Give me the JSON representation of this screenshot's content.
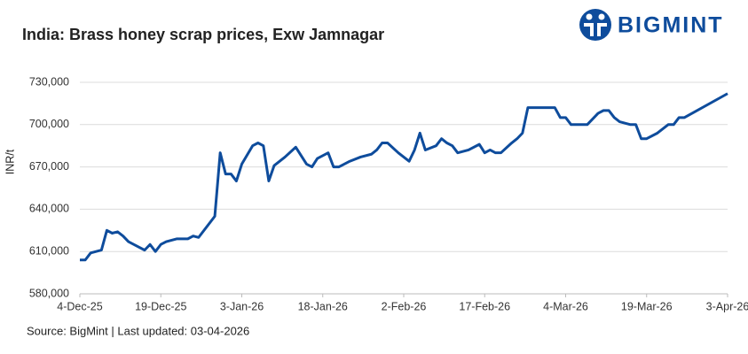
{
  "chart_data": {
    "type": "line",
    "title": "India: Brass honey scrap prices, Exw Jamnagar",
    "logo_text": "BIGMINT",
    "y_label": "INR/t",
    "source": "Source: BigMint | Last updated: 03-04-2026",
    "color": "#0e4c9c",
    "grid": true,
    "x": [
      "2025-12-04",
      "2025-12-05",
      "2025-12-06",
      "2025-12-08",
      "2025-12-09",
      "2025-12-10",
      "2025-12-11",
      "2025-12-12",
      "2025-12-13",
      "2025-12-15",
      "2025-12-16",
      "2025-12-17",
      "2025-12-18",
      "2025-12-19",
      "2025-12-20",
      "2025-12-22",
      "2025-12-24",
      "2025-12-25",
      "2025-12-26",
      "2025-12-29",
      "2025-12-30",
      "2025-12-31",
      "2026-01-01",
      "2026-01-02",
      "2026-01-03",
      "2026-01-05",
      "2026-01-06",
      "2026-01-07",
      "2026-01-08",
      "2026-01-09",
      "2026-01-11",
      "2026-01-13",
      "2026-01-15",
      "2026-01-16",
      "2026-01-17",
      "2026-01-19",
      "2026-01-20",
      "2026-01-21",
      "2026-01-23",
      "2026-01-25",
      "2026-01-27",
      "2026-01-28",
      "2026-01-29",
      "2026-01-30",
      "2026-02-01",
      "2026-02-02",
      "2026-02-03",
      "2026-02-04",
      "2026-02-05",
      "2026-02-06",
      "2026-02-08",
      "2026-02-09",
      "2026-02-10",
      "2026-02-11",
      "2026-02-12",
      "2026-02-14",
      "2026-02-16",
      "2026-02-17",
      "2026-02-18",
      "2026-02-19",
      "2026-02-20",
      "2026-02-22",
      "2026-02-23",
      "2026-02-24",
      "2026-02-25",
      "2026-02-27",
      "2026-03-02",
      "2026-03-03",
      "2026-03-04",
      "2026-03-05",
      "2026-03-08",
      "2026-03-10",
      "2026-03-11",
      "2026-03-12",
      "2026-03-13",
      "2026-03-14",
      "2026-03-16",
      "2026-03-17",
      "2026-03-18",
      "2026-03-19",
      "2026-03-21",
      "2026-03-23",
      "2026-03-24",
      "2026-03-25",
      "2026-03-26",
      "2026-04-03"
    ],
    "values": [
      604000,
      604000,
      609000,
      611000,
      625000,
      623000,
      624000,
      621000,
      617000,
      613000,
      611000,
      615000,
      610000,
      615000,
      617000,
      619000,
      619000,
      621000,
      620000,
      635000,
      680000,
      665000,
      665000,
      660000,
      672000,
      685000,
      687000,
      685000,
      660000,
      671000,
      677000,
      684000,
      672000,
      670000,
      676000,
      680000,
      670000,
      670000,
      674000,
      677000,
      679000,
      682000,
      687000,
      687000,
      680000,
      677000,
      674000,
      682000,
      694000,
      682000,
      685000,
      690000,
      687000,
      685000,
      680000,
      682000,
      686000,
      680000,
      682000,
      680000,
      680000,
      687000,
      690000,
      694000,
      712000,
      712000,
      712000,
      705000,
      705000,
      700000,
      700000,
      708000,
      710000,
      710000,
      705000,
      702000,
      700000,
      700000,
      690000,
      690000,
      694000,
      700000,
      700000,
      705000,
      705000,
      722000
    ],
    "xlim": [
      "2025-12-04",
      "2026-04-03"
    ],
    "xticks": [
      {
        "value": "2025-12-04",
        "label": "4-Dec-25"
      },
      {
        "value": "2025-12-19",
        "label": "19-Dec-25"
      },
      {
        "value": "2026-01-03",
        "label": "3-Jan-26"
      },
      {
        "value": "2026-01-18",
        "label": "18-Jan-26"
      },
      {
        "value": "2026-02-02",
        "label": "2-Feb-26"
      },
      {
        "value": "2026-02-17",
        "label": "17-Feb-26"
      },
      {
        "value": "2026-03-04",
        "label": "4-Mar-26"
      },
      {
        "value": "2026-03-19",
        "label": "19-Mar-26"
      },
      {
        "value": "2026-04-03",
        "label": "3-Apr-26"
      }
    ],
    "ylim": [
      580000,
      730000
    ],
    "yticks": [
      {
        "value": 580000,
        "label": "580,000"
      },
      {
        "value": 610000,
        "label": "610,000"
      },
      {
        "value": 640000,
        "label": "640,000"
      },
      {
        "value": 670000,
        "label": "670,000"
      },
      {
        "value": 700000,
        "label": "700,000"
      },
      {
        "value": 730000,
        "label": "730,000"
      }
    ]
  }
}
